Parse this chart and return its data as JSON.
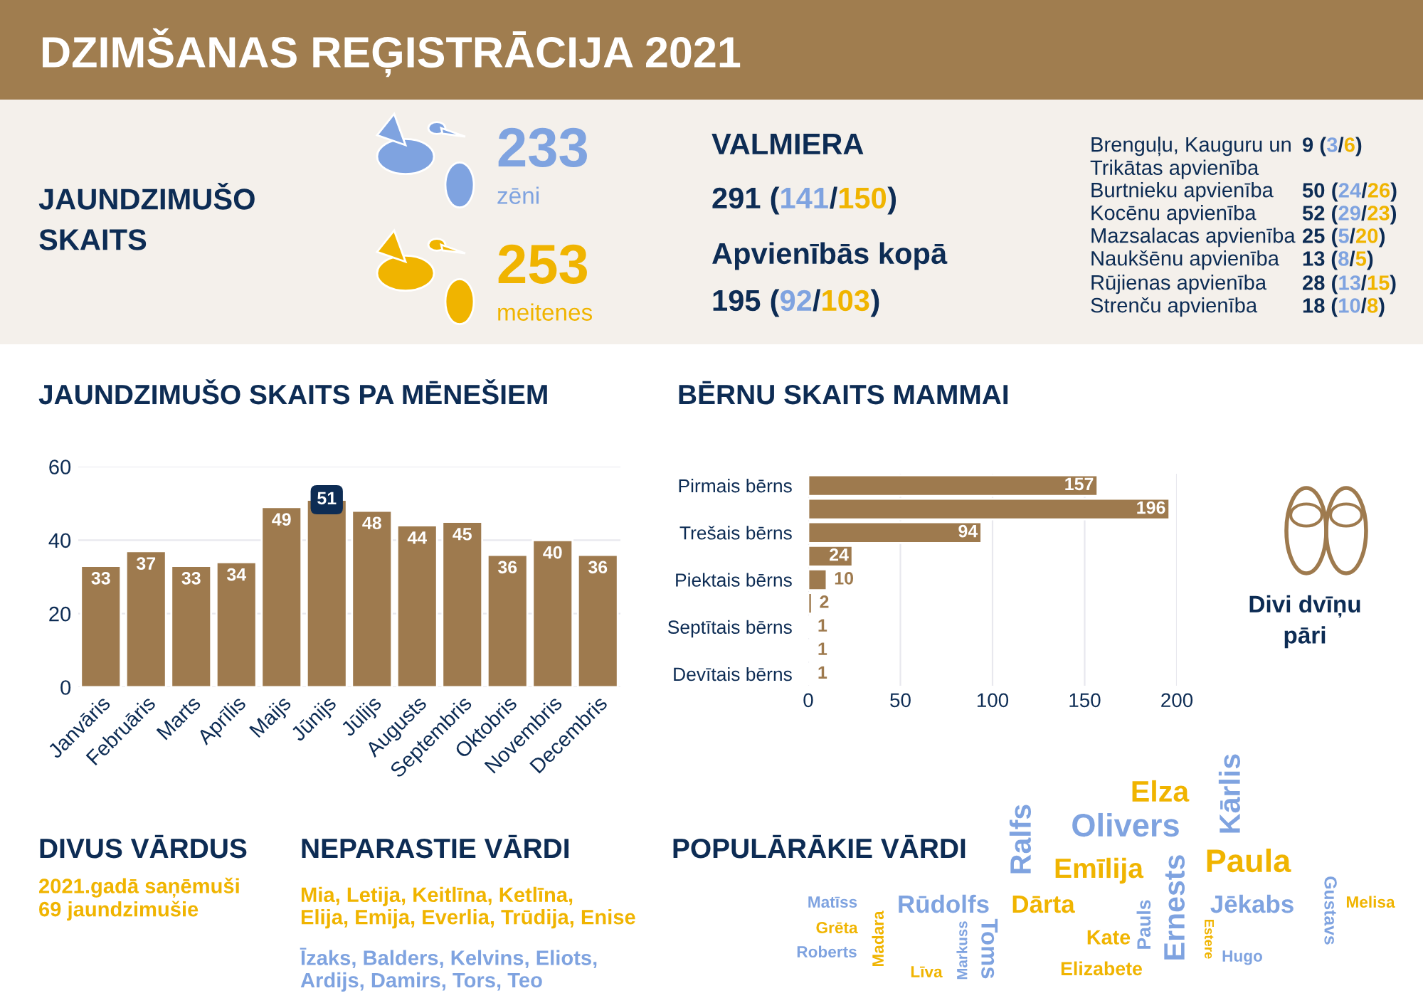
{
  "chart_data": [
    {
      "type": "other",
      "title": "DZIMŠANAS REĢISTRĀCIJA 2021"
    },
    {
      "type": "other",
      "title": "JAUNDZIMUŠO\nSKAITS",
      "annotations": [
        "233",
        "zēni",
        "253",
        "meitenes"
      ]
    },
    {
      "type": "other",
      "title": "VALMIERA",
      "subtitle": "Apvienībās kopā",
      "annotations": [
        "291 (141/150)",
        "195 (92/103)"
      ]
    },
    {
      "type": "other",
      "annotations": [
        "Brenguļu, Kauguru un\nTrikātas apvienība",
        "9 (3/6)",
        "Burtnieku apvienība",
        "50 (24/26)",
        "Kocēnu apvienība",
        "52 (29/23)",
        "Mazsalacas apvienība",
        "25 (5/20)",
        "Naukšēnu apvienība",
        "13 (8/5)",
        "Rūjienas apvienība",
        "28 (13/15)",
        "Strenču apvienība",
        "18 (10/8)"
      ]
    },
    {
      "type": "bar",
      "title": "JAUNDZIMUŠO SKAITS PA MĒNEŠIEM",
      "categories": [
        "Janvāris",
        "Februāris",
        "Marts",
        "Aprīlis",
        "Maijs",
        "Jūnijs",
        "Jūlijs",
        "Augusts",
        "Septembris",
        "Oktobris",
        "Novembris",
        "Decembris"
      ],
      "values": [
        33,
        37,
        33,
        34,
        49,
        51,
        48,
        44,
        45,
        36,
        40,
        36
      ],
      "color": "#9e7a4e",
      "ylim": [
        0,
        60
      ],
      "yticks": [
        0,
        20,
        40,
        60
      ],
      "grid": "y",
      "data_labels": true
    },
    {
      "type": "bar",
      "orientation": "horizontal",
      "title": "BĒRNU SKAITS MAMMAI",
      "categories": [
        "Pirmais bērns",
        null,
        "Trešais bērns",
        null,
        "Piektais bērns",
        null,
        "Septītais bērns",
        null,
        "Devītais bērns"
      ],
      "values": [
        157,
        196,
        94,
        24,
        10,
        2,
        1,
        1,
        1
      ],
      "color": "#9e7a4e",
      "xlim": [
        0,
        200
      ],
      "xticks": [
        0,
        50,
        100,
        150,
        200
      ],
      "grid": "x",
      "data_labels": true
    },
    {
      "type": "other",
      "annotations": [
        "Divi dvīņu\npāri"
      ]
    },
    {
      "type": "other",
      "title": "DIVUS VĀRDUS",
      "annotations": [
        "2021.gadā saņēmuši\n69 jaundzimušie"
      ]
    },
    {
      "type": "other",
      "title": "NEPARASTIE VĀRDI",
      "annotations": [
        "Mia, Letija, Keitlīna, Ketlīna,\nElija, Emija, Everlia, Trūdija, Enise",
        "Īzaks, Balders, Kelvins, Eliots,\nArdijs, Damirs, Tors, Teo"
      ]
    },
    {
      "type": "other",
      "title": "POPULĀRĀKIE VĀRDI",
      "annotations": [
        "Elza",
        "Kārlis",
        "Olivers",
        "Ralfs",
        "Emīlija",
        "Paula",
        "Ernests",
        "Gustavs",
        "Melisa",
        "Jēkabs",
        "Matīss",
        "Madara",
        "Rūdolfs",
        "Dārta",
        "Grēta",
        "Roberts",
        "Markuss",
        "Toms",
        "Pauls",
        "Kate",
        "Elizabete",
        "Līva",
        "Estere",
        "Hugo"
      ]
    }
  ]
}
